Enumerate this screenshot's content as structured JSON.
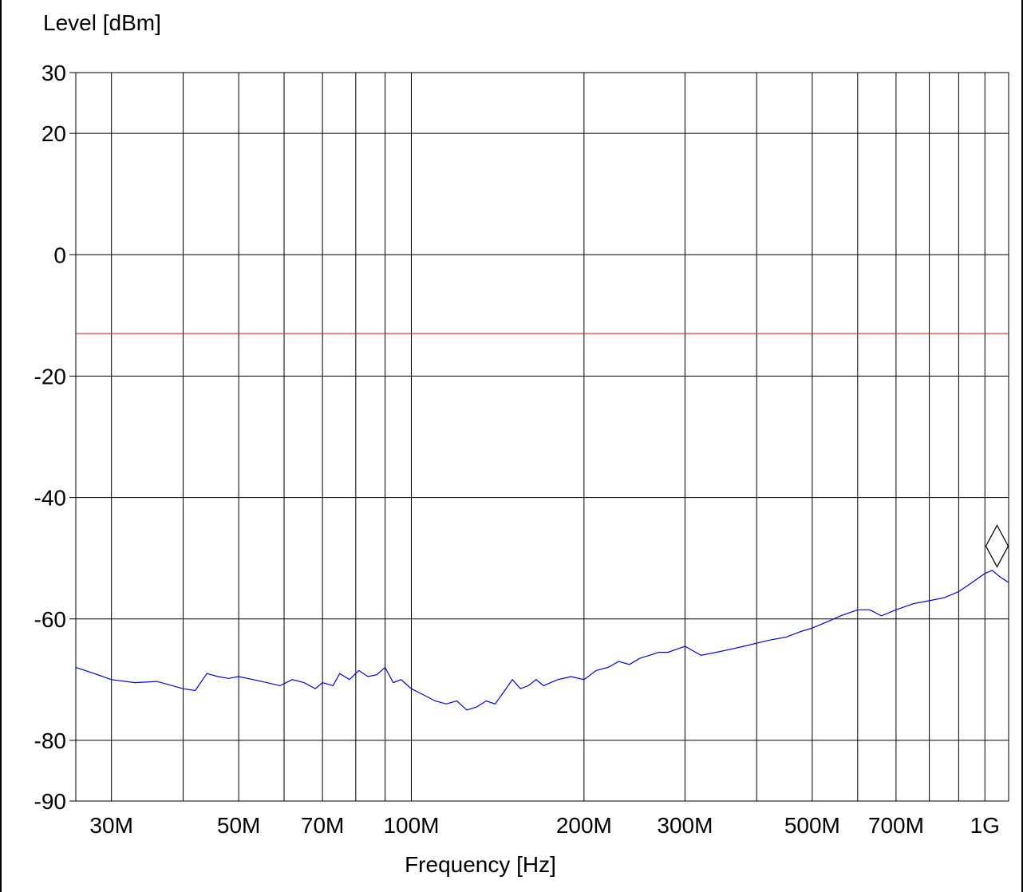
{
  "chart_data": {
    "type": "line",
    "ylabel": "Level [dBm]",
    "xlabel": "Frequency [Hz]",
    "x_scale": "log",
    "xlim": [
      26000000,
      1100000000
    ],
    "ylim": [
      -90,
      30
    ],
    "y_ticks": [
      30,
      20,
      0,
      -20,
      -40,
      -60,
      -80,
      -90
    ],
    "x_gridlines": [
      30000000,
      40000000,
      50000000,
      60000000,
      70000000,
      80000000,
      90000000,
      100000000,
      200000000,
      300000000,
      400000000,
      500000000,
      600000000,
      700000000,
      800000000,
      900000000,
      1000000000
    ],
    "x_tick_labels": [
      {
        "value": 30000000,
        "label": "30M"
      },
      {
        "value": 50000000,
        "label": "50M"
      },
      {
        "value": 70000000,
        "label": "70M"
      },
      {
        "value": 100000000,
        "label": "100M"
      },
      {
        "value": 200000000,
        "label": "200M"
      },
      {
        "value": 300000000,
        "label": "300M"
      },
      {
        "value": 500000000,
        "label": "500M"
      },
      {
        "value": 700000000,
        "label": "700M"
      },
      {
        "value": 1000000000,
        "label": "1G"
      }
    ],
    "grid": true,
    "limit_line": {
      "value": -13,
      "color": "#ff0000"
    },
    "series": [
      {
        "color": "#0000ff",
        "x": [
          26000000,
          28000000,
          30000000,
          33000000,
          36000000,
          40000000,
          42000000,
          44000000,
          46000000,
          48000000,
          50000000,
          53000000,
          56000000,
          59000000,
          62000000,
          65000000,
          68000000,
          70000000,
          73000000,
          75000000,
          78000000,
          81000000,
          84000000,
          87000000,
          90000000,
          93000000,
          96000000,
          100000000,
          105000000,
          110000000,
          115000000,
          120000000,
          125000000,
          130000000,
          135000000,
          140000000,
          145000000,
          150000000,
          155000000,
          160000000,
          165000000,
          170000000,
          175000000,
          180000000,
          190000000,
          200000000,
          210000000,
          220000000,
          230000000,
          240000000,
          250000000,
          260000000,
          270000000,
          280000000,
          290000000,
          300000000,
          320000000,
          340000000,
          360000000,
          380000000,
          400000000,
          420000000,
          450000000,
          480000000,
          500000000,
          530000000,
          560000000,
          600000000,
          630000000,
          660000000,
          700000000,
          750000000,
          800000000,
          850000000,
          900000000,
          950000000,
          1000000000,
          1030000000,
          1060000000,
          1100000000
        ],
        "y": [
          -68,
          -69,
          -70,
          -70.5,
          -70.3,
          -71.5,
          -71.8,
          -69,
          -69.5,
          -69.8,
          -69.5,
          -70,
          -70.5,
          -71,
          -70,
          -70.5,
          -71.5,
          -70.5,
          -71,
          -69,
          -70,
          -68.5,
          -69.5,
          -69.2,
          -68,
          -70.5,
          -70,
          -71.5,
          -72.5,
          -73.5,
          -74,
          -73.5,
          -75,
          -74.5,
          -73.5,
          -74,
          -72,
          -70,
          -71.5,
          -71,
          -70,
          -71,
          -70.5,
          -70,
          -69.5,
          -70,
          -68.5,
          -68,
          -67,
          -67.5,
          -66.5,
          -66,
          -65.5,
          -65.5,
          -65,
          -64.5,
          -66,
          -65.5,
          -65,
          -64.5,
          -64,
          -63.5,
          -63,
          -62,
          -61.5,
          -60.5,
          -59.5,
          -58.5,
          -58.5,
          -59.5,
          -58.5,
          -57.5,
          -57,
          -56.5,
          -55.5,
          -54,
          -52.5,
          -52,
          -53,
          -54
        ]
      }
    ],
    "marker": {
      "shape": "diamond",
      "x": 1050000000,
      "y": -48
    }
  }
}
